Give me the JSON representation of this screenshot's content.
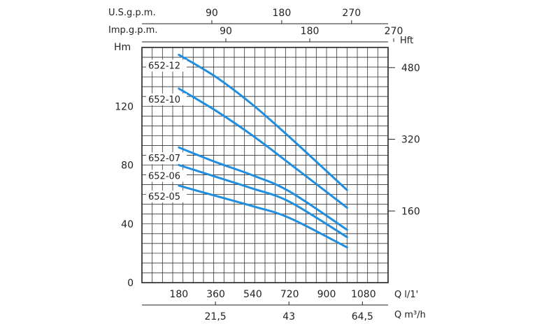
{
  "chart_data": {
    "type": "line",
    "ylabel_left": "Hm",
    "ylabel_right": "Hft",
    "top_axis_us": {
      "label": "U.S.g.p.m.",
      "ticks": [
        "90",
        "180",
        "270"
      ]
    },
    "top_axis_imp": {
      "label": "Imp.g.p.m.",
      "ticks": [
        "90",
        "180",
        "270"
      ]
    },
    "x_axis_lmin": {
      "label": "Q l/1'",
      "ticks": [
        "180",
        "360",
        "540",
        "720",
        "900",
        "1080"
      ]
    },
    "x_axis_m3h": {
      "label": "Q m³/h",
      "ticks": [
        "21,5",
        "43",
        "64,5"
      ]
    },
    "y_ticks": [
      "0",
      "40",
      "80",
      "120"
    ],
    "y_right_ticks": [
      "160",
      "320",
      "480"
    ],
    "xlim": [
      0,
      1200
    ],
    "ylim": [
      0,
      160
    ],
    "grid": true,
    "color": "#1f8ee0",
    "series": [
      {
        "name": "652-12",
        "x": [
          180,
          360,
          540,
          720,
          1000
        ],
        "y": [
          155,
          140,
          121,
          99,
          63
        ]
      },
      {
        "name": "652-10",
        "x": [
          180,
          360,
          540,
          720,
          1000
        ],
        "y": [
          132,
          117,
          100,
          81,
          51
        ]
      },
      {
        "name": "652-07",
        "x": [
          180,
          360,
          540,
          720,
          1000
        ],
        "y": [
          92,
          82,
          73,
          62,
          36
        ]
      },
      {
        "name": "652-06",
        "x": [
          180,
          360,
          540,
          720,
          1000
        ],
        "y": [
          80,
          72,
          64,
          55,
          31
        ]
      },
      {
        "name": "652-05",
        "x": [
          180,
          360,
          540,
          720,
          1000
        ],
        "y": [
          66,
          59,
          52,
          44,
          24
        ]
      }
    ]
  }
}
